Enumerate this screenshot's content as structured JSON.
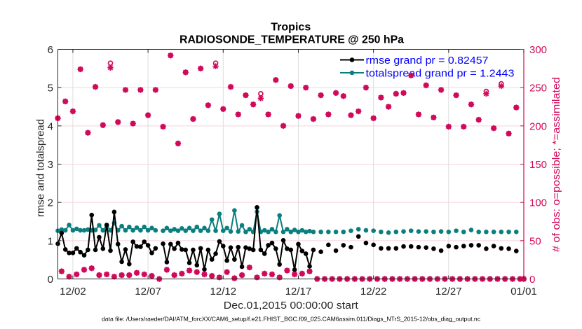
{
  "chart_data": {
    "type": "line",
    "title": "Tropics",
    "subtitle": "RADIOSONDE_TEMPERATURE @ 250 hPa",
    "xlabel": "Dec.01,2015 00:00:00 start",
    "ylabel": "rmse and totalspread",
    "ylabel_right": "# of obs: o=possible; *=assimilated",
    "footer": "data file: /Users/raeder/DAI/ATM_forcXX/CAM6_setup/f.e21.FHIST_BGC.f09_025.CAM6assim.011/Diags_NTrS_2015-12/obs_diag_output.nc",
    "xlim_days": [
      0,
      31
    ],
    "x_start_day": 0,
    "x_step_days": 0.25,
    "xticks": [
      {
        "day": 1,
        "label": "12/02"
      },
      {
        "day": 6,
        "label": "12/07"
      },
      {
        "day": 11,
        "label": "12/12"
      },
      {
        "day": 16,
        "label": "12/17"
      },
      {
        "day": 21,
        "label": "12/22"
      },
      {
        "day": 26,
        "label": "12/27"
      },
      {
        "day": 31,
        "label": "01/01"
      }
    ],
    "ylim": [
      0,
      6
    ],
    "yticks": [
      0,
      1,
      2,
      3,
      4,
      5,
      6
    ],
    "ylim_right": [
      0,
      300
    ],
    "yticks_right": [
      0,
      50,
      100,
      150,
      200,
      250,
      300
    ],
    "grid": "on",
    "legend": {
      "position": "top-right",
      "entries": [
        {
          "series": "rmse",
          "label": "rmse grand pr = 0.82457"
        },
        {
          "series": "totalspread",
          "label": "totalspread grand pr = 1.2443"
        }
      ]
    },
    "series": [
      {
        "key": "rmse",
        "name": "rmse",
        "axis": "left",
        "marker": "filled-circle",
        "color": "#000000",
        "values": [
          0.92,
          1.2,
          0.77,
          0.68,
          0.68,
          0.8,
          0.7,
          0.62,
          0.76,
          1.67,
          0.76,
          1.09,
          0.79,
          1.41,
          0.74,
          1.75,
          0.91,
          0.45,
          0.77,
          0.39,
          0.97,
          0.85,
          0.84,
          0.97,
          0.88,
          0.68,
          0.8,
          null,
          0.92,
          0.44,
          0.91,
          0.79,
          0.94,
          0.77,
          0.76,
          0.42,
          0.76,
          0.36,
          0.8,
          0.25,
          0.76,
          0.51,
          0.66,
          0.98,
          0.86,
          0.48,
          0.82,
          0.51,
          0.83,
          0.32,
          0.82,
          0.79,
          0.76,
          1.87,
          0.76,
          0.66,
          0.88,
          0.94,
          0.79,
          0.38,
          1.01,
          0.79,
          0.76,
          0.24,
          0.91,
          0.73,
          0.66,
          0.33,
          0.76,
          null,
          0.71,
          null,
          0.89,
          null,
          0.74,
          null,
          0.88,
          null,
          0.83,
          null,
          1.11,
          null,
          0.94,
          null,
          0.89,
          null,
          0.8,
          null,
          0.8,
          null,
          0.8,
          null,
          0.85,
          null,
          0.85,
          null,
          0.83,
          null,
          0.82,
          null,
          0.79,
          null,
          0.74,
          null,
          0.86,
          null,
          0.83,
          null,
          0.86,
          null,
          0.88,
          null,
          0.88,
          null,
          0.79,
          null,
          0.86,
          null,
          0.8,
          null,
          0.79,
          null,
          0.73,
          null,
          null
        ]
      },
      {
        "key": "totalspread",
        "name": "totalspread",
        "axis": "left",
        "marker": "filled-circle",
        "color": "#0b7e7e",
        "values": [
          1.26,
          1.29,
          1.27,
          1.41,
          1.27,
          1.31,
          1.27,
          1.27,
          1.29,
          1.27,
          1.28,
          1.4,
          1.27,
          1.4,
          1.27,
          1.46,
          1.27,
          1.38,
          1.27,
          1.36,
          1.27,
          1.34,
          1.27,
          1.36,
          1.27,
          1.33,
          1.27,
          null,
          1.26,
          1.33,
          1.26,
          1.3,
          1.26,
          1.32,
          1.26,
          1.33,
          1.26,
          1.36,
          1.26,
          1.33,
          1.26,
          1.55,
          1.26,
          1.7,
          1.26,
          1.33,
          1.24,
          1.79,
          1.24,
          1.4,
          1.23,
          1.3,
          1.23,
          1.76,
          1.23,
          1.27,
          1.23,
          1.3,
          1.23,
          1.66,
          1.23,
          1.3,
          1.23,
          1.28,
          1.23,
          1.27,
          1.23,
          1.25,
          1.23,
          null,
          1.23,
          null,
          1.23,
          null,
          1.23,
          null,
          1.23,
          null,
          1.26,
          null,
          1.3,
          null,
          1.27,
          null,
          1.26,
          null,
          1.23,
          null,
          1.21,
          null,
          1.23,
          null,
          1.24,
          null,
          1.26,
          null,
          1.24,
          null,
          1.24,
          null,
          1.23,
          null,
          1.24,
          null,
          1.23,
          null,
          1.26,
          null,
          1.23,
          null,
          1.28,
          null,
          1.23,
          null,
          1.23,
          null,
          1.23,
          null,
          1.23,
          null,
          1.23,
          null,
          1.23,
          null,
          null
        ]
      },
      {
        "key": "obs_possible",
        "name": "# of obs possible",
        "axis": "right",
        "marker": "o",
        "color": "#d1095a",
        "values": [
          210,
          10,
          232,
          3,
          219,
          6,
          274,
          12,
          191,
          14,
          251,
          5,
          201,
          6,
          282,
          3,
          205,
          5,
          247,
          5,
          203,
          8,
          247,
          6,
          214,
          4,
          247,
          0,
          199,
          12,
          292,
          5,
          177,
          7,
          270,
          11,
          209,
          9,
          275,
          6,
          227,
          4,
          282,
          2,
          222,
          9,
          251,
          1,
          215,
          5,
          240,
          15,
          228,
          2,
          242,
          7,
          215,
          6,
          260,
          2,
          200,
          11,
          252,
          6,
          213,
          7,
          250,
          10,
          209,
          0,
          240,
          0,
          215,
          0,
          243,
          0,
          239,
          0,
          214,
          0,
          219,
          0,
          250,
          0,
          210,
          0,
          237,
          0,
          225,
          0,
          242,
          0,
          243,
          0,
          266,
          0,
          215,
          0,
          253,
          0,
          211,
          0,
          247,
          0,
          199,
          0,
          240,
          0,
          199,
          0,
          228,
          0,
          208,
          0,
          245,
          0,
          197,
          0,
          255,
          0,
          190,
          0,
          224,
          0,
          0
        ]
      },
      {
        "key": "obs_assimilated",
        "name": "# of obs assimilated",
        "axis": "right",
        "marker": "*",
        "color": "#d1095a",
        "values": [
          210,
          10,
          232,
          3,
          219,
          6,
          274,
          12,
          191,
          14,
          251,
          5,
          201,
          6,
          276,
          3,
          205,
          5,
          247,
          5,
          203,
          8,
          247,
          6,
          214,
          4,
          247,
          0,
          199,
          12,
          292,
          5,
          177,
          7,
          270,
          11,
          209,
          9,
          275,
          6,
          227,
          4,
          278,
          2,
          222,
          9,
          251,
          1,
          215,
          5,
          240,
          15,
          228,
          2,
          236,
          7,
          215,
          6,
          260,
          2,
          200,
          11,
          252,
          6,
          213,
          7,
          250,
          10,
          209,
          0,
          240,
          0,
          215,
          0,
          243,
          0,
          239,
          0,
          214,
          0,
          219,
          0,
          250,
          0,
          210,
          0,
          237,
          0,
          225,
          0,
          242,
          0,
          243,
          0,
          266,
          0,
          215,
          0,
          253,
          0,
          211,
          0,
          247,
          0,
          199,
          0,
          240,
          0,
          199,
          0,
          228,
          0,
          208,
          0,
          242,
          0,
          197,
          0,
          252,
          0,
          190,
          0,
          224,
          0,
          0
        ]
      }
    ]
  }
}
